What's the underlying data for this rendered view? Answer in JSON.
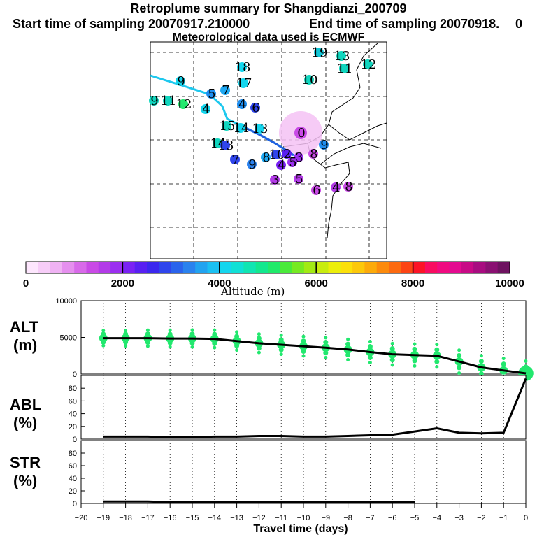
{
  "header": {
    "title": "Retroplume summary for Shangdianzi_200709",
    "start_label": "Start time of sampling 20070917.210000",
    "end_label": "End time of sampling 20070918.",
    "end_value": "0",
    "met_label": "Meteorological data used is ECMWF"
  },
  "colorbar": {
    "label": "Altitude (m)",
    "tick_labels": [
      "0",
      "2000",
      "4000",
      "6000",
      "8000",
      "10000"
    ],
    "colors": [
      "#fde6fd",
      "#f7cdf8",
      "#efb2f3",
      "#e58fee",
      "#d86ae9",
      "#c94ae6",
      "#b33be8",
      "#9b2ff0",
      "#7a22f4",
      "#5820f2",
      "#3b28ee",
      "#2f45ec",
      "#2a63ec",
      "#2a82ee",
      "#22a3f0",
      "#1bc0f2",
      "#14d6ee",
      "#10e0d6",
      "#10e5b2",
      "#12e88e",
      "#20ea6a",
      "#4aea3a",
      "#76ea22",
      "#a2ea14",
      "#c8ec0e",
      "#ecee0a",
      "#fce00a",
      "#fcc80a",
      "#fcaa0a",
      "#fc8a0c",
      "#fc6a10",
      "#fc4414",
      "#fc1426",
      "#f80c60",
      "#f00a80",
      "#e40a90",
      "#c80a86",
      "#a80c80",
      "#8a1072",
      "#6e1260"
    ]
  },
  "map_labels": [
    "0",
    "2",
    "3",
    "4",
    "5",
    "6",
    "7",
    "8",
    "9",
    "10",
    "11",
    "12",
    "13",
    "14",
    "15",
    "16",
    "17",
    "18",
    "19"
  ],
  "chart_data": [
    {
      "type": "line",
      "panel_label": "ALT",
      "panel_unit": "(m)",
      "x": [
        -19,
        -18,
        -17,
        -16,
        -15,
        -14,
        -13,
        -12,
        -11,
        -10,
        -9,
        -8,
        -7,
        -6,
        -5,
        -4,
        -3,
        -2,
        -1,
        0
      ],
      "values": [
        4900,
        4900,
        4900,
        4850,
        4850,
        4800,
        4500,
        4200,
        4000,
        3800,
        3600,
        3350,
        3000,
        2700,
        2600,
        2500,
        1700,
        900,
        500,
        100
      ],
      "ylim": [
        0,
        10000
      ],
      "yticks": [
        "0",
        "5000",
        "10000"
      ],
      "marker_color": "#22e86e"
    },
    {
      "type": "line",
      "panel_label": "ABL",
      "panel_unit": "(%)",
      "x": [
        -19,
        -18,
        -17,
        -16,
        -15,
        -14,
        -13,
        -12,
        -11,
        -10,
        -9,
        -8,
        -7,
        -6,
        -5,
        -4,
        -3,
        -2,
        -1,
        0
      ],
      "values": [
        4,
        4,
        4,
        3,
        3,
        4,
        4,
        5,
        5,
        4,
        4,
        5,
        6,
        7,
        12,
        17,
        10,
        9,
        10,
        95
      ],
      "ylim": [
        0,
        100
      ],
      "yticks": [
        "0",
        "20",
        "40",
        "60",
        "80"
      ]
    },
    {
      "type": "line",
      "panel_label": "STR",
      "panel_unit": "(%)",
      "x": [
        -19,
        -18,
        -17,
        -16,
        -15,
        -14,
        -13,
        -12,
        -11,
        -10,
        -9,
        -8,
        -7,
        -6,
        -5
      ],
      "values": [
        3,
        3,
        3,
        2,
        2,
        2,
        2,
        2,
        2,
        2,
        2,
        2,
        2,
        2,
        2
      ],
      "ylim": [
        0,
        100
      ],
      "yticks": [
        "0",
        "20",
        "40",
        "60",
        "80"
      ]
    }
  ],
  "x_axis": {
    "tick_labels": [
      "−20",
      "−19",
      "−18",
      "−17",
      "−16",
      "−15",
      "−14",
      "−13",
      "−12",
      "−11",
      "−10",
      "−9",
      "−8",
      "−7",
      "−6",
      "−5",
      "−4",
      "−3",
      "−2",
      "−1",
      "0"
    ],
    "label": "Travel time (days)"
  }
}
